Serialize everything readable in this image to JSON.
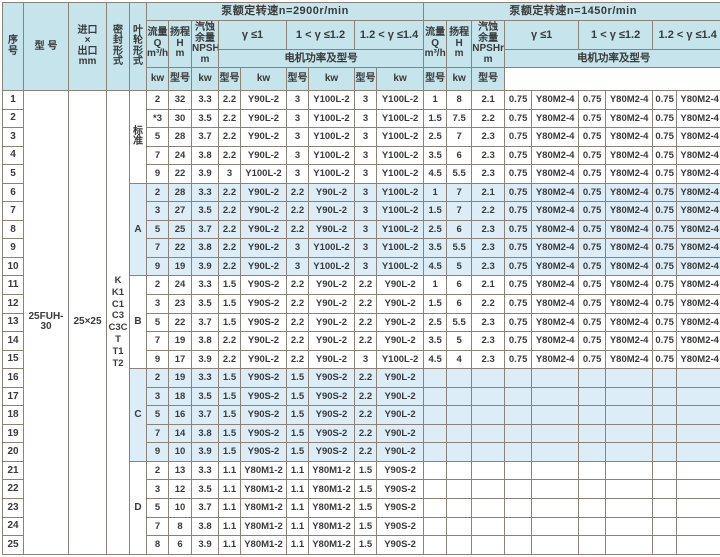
{
  "headers": {
    "seq": "序\n号",
    "model": "型 号",
    "inlet": "进口\n×\n出口\nmm",
    "seal": "密\n封\n形\n式",
    "impeller": "叶\n轮\n形\n式",
    "flow": "流量\nQ\nm³/h",
    "head": "扬程\nH\nm",
    "npsh": "汽蚀\n余量\nNPSHr\nm",
    "kw": "kw",
    "motor_model": "型号"
  },
  "sections": [
    {
      "title": "泵额定转速n=2900r/min",
      "motor": "电机功率及型号",
      "gammas": [
        "γ ≤1",
        "1 < γ ≤1.2",
        "1.2 < γ ≤1.4"
      ]
    },
    {
      "title": "泵额定转速n=1450r/min",
      "motor": "电机功率及型号",
      "gammas": [
        "γ ≤1",
        "1 < γ ≤1.2",
        "1.2 < γ ≤1.4"
      ]
    }
  ],
  "pump": {
    "model": "25FUH-30",
    "inlet_outlet": "25×25",
    "seal_codes": [
      "K",
      "K1",
      "C1",
      "C3",
      "C3C",
      "T",
      "T1",
      "T2"
    ]
  },
  "colors": {
    "header_bg": "#c6e4ec",
    "band_bg": "#dcedf8",
    "grid_line": "#8d8278",
    "text": "#3a3a3a"
  },
  "groups": [
    {
      "impeller": "标\n准",
      "rows": [
        {
          "seq": "1",
          "s2900": [
            "2",
            "32",
            "3.3",
            "2.2",
            "Y90L-2",
            "3",
            "Y100L-2",
            "3",
            "Y100L-2"
          ],
          "s1450": [
            "1",
            "8",
            "2.1",
            "0.75",
            "Y80M2-4",
            "0.75",
            "Y80M2-4",
            "0.75",
            "Y80M2-4"
          ]
        },
        {
          "seq": "2",
          "s2900": [
            "*3",
            "30",
            "3.5",
            "2.2",
            "Y90L-2",
            "3",
            "Y100L-2",
            "3",
            "Y100L-2"
          ],
          "s1450": [
            "1.5",
            "7.5",
            "2.2",
            "0.75",
            "Y80M2-4",
            "0.75",
            "Y80M2-4",
            "0.75",
            "Y80M2-4"
          ]
        },
        {
          "seq": "3",
          "s2900": [
            "5",
            "28",
            "3.7",
            "2.2",
            "Y90L-2",
            "3",
            "Y100L-2",
            "3",
            "Y100L-2"
          ],
          "s1450": [
            "2.5",
            "7",
            "2.3",
            "0.75",
            "Y80M2-4",
            "0.75",
            "Y80M2-4",
            "0.75",
            "Y80M2-4"
          ]
        },
        {
          "seq": "4",
          "s2900": [
            "7",
            "24",
            "3.8",
            "2.2",
            "Y90L-2",
            "3",
            "Y100L-2",
            "3",
            "Y100L-2"
          ],
          "s1450": [
            "3.5",
            "6",
            "2.3",
            "0.75",
            "Y80M2-4",
            "0.75",
            "Y80M2-4",
            "0.75",
            "Y80M2-4"
          ]
        },
        {
          "seq": "5",
          "s2900": [
            "9",
            "22",
            "3.9",
            "3",
            "Y100L-2",
            "3",
            "Y100L-2",
            "3",
            "Y100L-2"
          ],
          "s1450": [
            "4.5",
            "5.5",
            "2.3",
            "0.75",
            "Y80M2-4",
            "0.75",
            "Y80M2-4",
            "0.75",
            "Y80M2-4"
          ]
        }
      ]
    },
    {
      "impeller": "A",
      "rows": [
        {
          "seq": "6",
          "s2900": [
            "2",
            "28",
            "3.3",
            "2.2",
            "Y90L-2",
            "2.2",
            "Y90L-2",
            "3",
            "Y100L-2"
          ],
          "s1450": [
            "1",
            "7",
            "2.1",
            "0.75",
            "Y80M2-4",
            "0.75",
            "Y80M2-4",
            "0.75",
            "Y80M2-4"
          ]
        },
        {
          "seq": "7",
          "s2900": [
            "3",
            "27",
            "3.5",
            "2.2",
            "Y90L-2",
            "2.2",
            "Y90L-2",
            "3",
            "Y100L-2"
          ],
          "s1450": [
            "1.5",
            "7",
            "2.2",
            "0.75",
            "Y80M2-4",
            "0.75",
            "Y80M2-4",
            "0.75",
            "Y80M2-4"
          ]
        },
        {
          "seq": "8",
          "s2900": [
            "5",
            "25",
            "3.7",
            "2.2",
            "Y90L-2",
            "2.2",
            "Y90L-2",
            "3",
            "Y100L-2"
          ],
          "s1450": [
            "2.5",
            "6",
            "2.3",
            "0.75",
            "Y80M2-4",
            "0.75",
            "Y80M2-4",
            "0.75",
            "Y80M2-4"
          ]
        },
        {
          "seq": "9",
          "s2900": [
            "7",
            "22",
            "3.8",
            "2.2",
            "Y90L-2",
            "3",
            "Y100L-2",
            "3",
            "Y100L-2"
          ],
          "s1450": [
            "3.5",
            "5.5",
            "2.3",
            "0.75",
            "Y80M2-4",
            "0.75",
            "Y80M2-4",
            "0.75",
            "Y80M2-4"
          ]
        },
        {
          "seq": "10",
          "s2900": [
            "9",
            "19",
            "3.9",
            "2.2",
            "Y90L-2",
            "3",
            "Y100L-2",
            "3",
            "Y100L-2"
          ],
          "s1450": [
            "4.5",
            "5",
            "2.3",
            "0.75",
            "Y80M2-4",
            "0.75",
            "Y80M2-4",
            "0.75",
            "Y80M2-4"
          ]
        }
      ]
    },
    {
      "impeller": "B",
      "rows": [
        {
          "seq": "11",
          "s2900": [
            "2",
            "24",
            "3.3",
            "1.5",
            "Y90S-2",
            "2.2",
            "Y90L-2",
            "2.2",
            "Y90L-2"
          ],
          "s1450": [
            "1",
            "6",
            "2.1",
            "0.75",
            "Y80M2-4",
            "0.75",
            "Y80M2-4",
            "0.75",
            "Y80M2-4"
          ]
        },
        {
          "seq": "12",
          "s2900": [
            "3",
            "23",
            "3.5",
            "1.5",
            "Y90S-2",
            "2.2",
            "Y90L-2",
            "2.2",
            "Y90L-2"
          ],
          "s1450": [
            "1.5",
            "6",
            "2.2",
            "0.75",
            "Y80M2-4",
            "0.75",
            "Y80M2-4",
            "0.75",
            "Y80M2-4"
          ]
        },
        {
          "seq": "13",
          "s2900": [
            "5",
            "22",
            "3.7",
            "1.5",
            "Y90S-2",
            "2.2",
            "Y90L-2",
            "2.2",
            "Y90L-2"
          ],
          "s1450": [
            "2.5",
            "5.5",
            "2.3",
            "0.75",
            "Y80M2-4",
            "0.75",
            "Y80M2-4",
            "0.75",
            "Y80M2-4"
          ]
        },
        {
          "seq": "14",
          "s2900": [
            "7",
            "19",
            "3.8",
            "2.2",
            "Y90L-2",
            "2.2",
            "Y90L-2",
            "2.2",
            "Y90L-2"
          ],
          "s1450": [
            "3.5",
            "5",
            "2.3",
            "0.75",
            "Y80M2-4",
            "0.75",
            "Y80M2-4",
            "0.75",
            "Y80M2-4"
          ]
        },
        {
          "seq": "15",
          "s2900": [
            "9",
            "17",
            "3.9",
            "2.2",
            "Y90L-2",
            "2.2",
            "Y90L-2",
            "3",
            "Y100L-2"
          ],
          "s1450": [
            "4.5",
            "4",
            "2.3",
            "0.75",
            "Y80M2-4",
            "0.75",
            "Y80M2-4",
            "0.75",
            "Y80M2-4"
          ]
        }
      ]
    },
    {
      "impeller": "C",
      "rows": [
        {
          "seq": "16",
          "s2900": [
            "2",
            "19",
            "3.3",
            "1.5",
            "Y90S-2",
            "1.5",
            "Y90S-2",
            "2.2",
            "Y90L-2"
          ],
          "s1450": [
            "",
            "",
            "",
            "",
            "",
            "",
            "",
            "",
            ""
          ]
        },
        {
          "seq": "17",
          "s2900": [
            "3",
            "18",
            "3.5",
            "1.5",
            "Y90S-2",
            "1.5",
            "Y90S-2",
            "2.2",
            "Y90L-2"
          ],
          "s1450": [
            "",
            "",
            "",
            "",
            "",
            "",
            "",
            "",
            ""
          ]
        },
        {
          "seq": "18",
          "s2900": [
            "5",
            "16",
            "3.7",
            "1.5",
            "Y90S-2",
            "1.5",
            "Y90S-2",
            "2.2",
            "Y90L-2"
          ],
          "s1450": [
            "",
            "",
            "",
            "",
            "",
            "",
            "",
            "",
            ""
          ]
        },
        {
          "seq": "19",
          "s2900": [
            "7",
            "14",
            "3.8",
            "1.5",
            "Y90S-2",
            "1.5",
            "Y90S-2",
            "2.2",
            "Y90L-2"
          ],
          "s1450": [
            "",
            "",
            "",
            "",
            "",
            "",
            "",
            "",
            ""
          ]
        },
        {
          "seq": "20",
          "s2900": [
            "9",
            "10",
            "3.9",
            "1.5",
            "Y90S-2",
            "1.5",
            "Y90S-2",
            "2.2",
            "Y90L-2"
          ],
          "s1450": [
            "",
            "",
            "",
            "",
            "",
            "",
            "",
            "",
            ""
          ]
        }
      ]
    },
    {
      "impeller": "D",
      "rows": [
        {
          "seq": "21",
          "s2900": [
            "2",
            "13",
            "3.3",
            "1.1",
            "Y80M1-2",
            "1.1",
            "Y80M1-2",
            "1.5",
            "Y90S-2"
          ],
          "s1450": [
            "",
            "",
            "",
            "",
            "",
            "",
            "",
            "",
            ""
          ]
        },
        {
          "seq": "22",
          "s2900": [
            "3",
            "12",
            "3.5",
            "1.1",
            "Y80M1-2",
            "1.1",
            "Y80M1-2",
            "1.5",
            "Y90S-2"
          ],
          "s1450": [
            "",
            "",
            "",
            "",
            "",
            "",
            "",
            "",
            ""
          ]
        },
        {
          "seq": "23",
          "s2900": [
            "5",
            "10",
            "3.7",
            "1.1",
            "Y80M1-2",
            "1.1",
            "Y80M1-2",
            "1.5",
            "Y90S-2"
          ],
          "s1450": [
            "",
            "",
            "",
            "",
            "",
            "",
            "",
            "",
            ""
          ]
        },
        {
          "seq": "24",
          "s2900": [
            "7",
            "8",
            "3.8",
            "1.1",
            "Y80M1-2",
            "1.1",
            "Y80M1-2",
            "1.5",
            "Y90S-2"
          ],
          "s1450": [
            "",
            "",
            "",
            "",
            "",
            "",
            "",
            "",
            ""
          ]
        },
        {
          "seq": "25",
          "s2900": [
            "8",
            "6",
            "3.9",
            "1.1",
            "Y80M1-2",
            "1.1",
            "Y80M1-2",
            "1.5",
            "Y90S-2"
          ],
          "s1450": [
            "",
            "",
            "",
            "",
            "",
            "",
            "",
            "",
            ""
          ]
        }
      ]
    }
  ],
  "cell_names_2900": [
    "cell-flow-2900",
    "cell-head-2900",
    "cell-npsh-2900",
    "cell-kw-2900-g1",
    "cell-motor-model-2900-g1",
    "cell-kw-2900-g2",
    "cell-motor-model-2900-g2",
    "cell-kw-2900-g3",
    "cell-motor-model-2900-g3"
  ],
  "cell_names_1450": [
    "cell-flow-1450",
    "cell-head-1450",
    "cell-npsh-1450",
    "cell-kw-1450-g1",
    "cell-motor-model-1450-g1",
    "cell-kw-1450-g2",
    "cell-motor-model-1450-g2",
    "cell-kw-1450-g3",
    "cell-motor-model-1450-g3"
  ]
}
